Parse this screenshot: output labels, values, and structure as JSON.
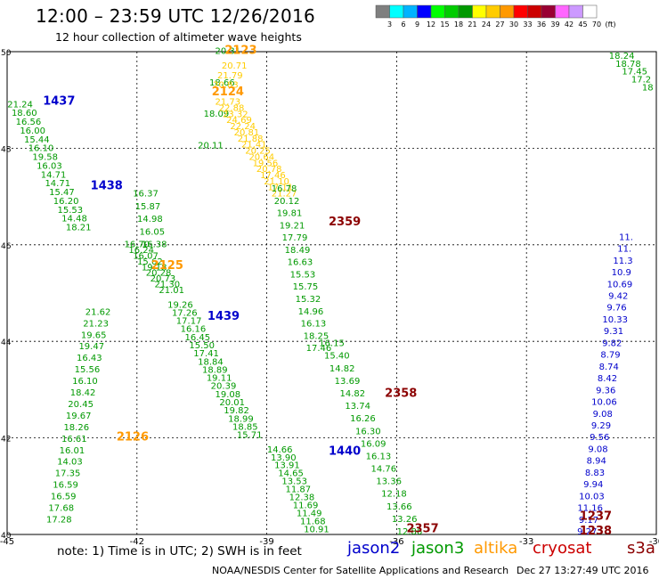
{
  "header": {
    "title": "12:00 – 23:59 UTC 12/26/2016",
    "subtitle": "12 hour collection of altimeter wave heights"
  },
  "footer": {
    "note": "note:  1) Time is in UTC; 2) SWH is in feet",
    "credits": "NOAA/NESDIS Center for Satellite Applications and Research",
    "timestamp": "Dec 27 13:27:49 UTC 2016",
    "satellites": [
      {
        "name": "jason2",
        "color": "#0000cc"
      },
      {
        "name": "jason3",
        "color": "#009900"
      },
      {
        "name": "altika",
        "color": "#ff9900"
      },
      {
        "name": "cryosat",
        "color": "#cc0000"
      },
      {
        "name": "s3a",
        "color": "#8b0000"
      }
    ]
  },
  "chart_data": {
    "type": "scatter",
    "xlim": [
      -45,
      -30
    ],
    "ylim": [
      40,
      50
    ],
    "x_ticks": [
      "-45",
      "-42",
      "-39",
      "-36",
      "-33",
      "-30"
    ],
    "y_ticks": [
      "40",
      "42",
      "44",
      "46",
      "48",
      "50"
    ],
    "grid": true,
    "colorbar": {
      "labels": [
        "3",
        "6",
        "9",
        "12",
        "15",
        "18",
        "21",
        "24",
        "27",
        "30",
        "33",
        "36",
        "39",
        "42",
        "45",
        "70",
        "(ft)"
      ],
      "colors": [
        "#7f7f7f",
        "#00ffff",
        "#00b3ff",
        "#0000ff",
        "#00ff00",
        "#00cc00",
        "#009900",
        "#ffff00",
        "#ffcc00",
        "#ff9900",
        "#ff0000",
        "#cc0000",
        "#990033",
        "#ff66ff",
        "#cc99ff",
        "#ffffff"
      ]
    },
    "pass_labels": [
      {
        "text": "2123",
        "x": -39.6,
        "y": 49.95,
        "color": "#ff9900"
      },
      {
        "text": "2124",
        "x": -39.9,
        "y": 49.1,
        "color": "#ff9900"
      },
      {
        "text": "1437",
        "x": -43.8,
        "y": 48.9,
        "color": "#0000cc"
      },
      {
        "text": "1438",
        "x": -42.7,
        "y": 47.15,
        "color": "#0000cc"
      },
      {
        "text": "2359",
        "x": -37.2,
        "y": 46.4,
        "color": "#8b0000"
      },
      {
        "text": "2125",
        "x": -41.3,
        "y": 45.5,
        "color": "#ff9900"
      },
      {
        "text": "1439",
        "x": -40.0,
        "y": 44.45,
        "color": "#0000cc"
      },
      {
        "text": "2358",
        "x": -35.9,
        "y": 42.85,
        "color": "#8b0000"
      },
      {
        "text": "2126",
        "x": -42.1,
        "y": 41.95,
        "color": "#ff9900"
      },
      {
        "text": "1440",
        "x": -37.2,
        "y": 41.65,
        "color": "#0000cc"
      },
      {
        "text": "2357",
        "x": -35.4,
        "y": 40.05,
        "color": "#8b0000"
      },
      {
        "text": "1237",
        "x": -31.4,
        "y": 40.3,
        "color": "#8b0000"
      },
      {
        "text": "1238",
        "x": -31.4,
        "y": 40.0,
        "color": "#8b0000"
      }
    ],
    "tracks": [
      {
        "name": "jason3 2123 south",
        "x0": -39.9,
        "y0": 49.95,
        "x1": -40.3,
        "y1": 48.0,
        "color": "#009900",
        "values": [
          "20.31",
          "18.66",
          "18.09",
          "20.11"
        ]
      },
      {
        "name": "altika 2123",
        "x0": -39.75,
        "y0": 49.65,
        "x1": -39.95,
        "y1": 49.25,
        "color": "#ffcc00",
        "values": [
          "20.71",
          "21.79",
          "20.83"
        ]
      },
      {
        "name": "track 2124",
        "x0": -39.9,
        "y0": 48.9,
        "x1": -38.6,
        "y1": 47.0,
        "color": "#ffcc00",
        "values": [
          "21.73",
          "22.88",
          "23.32",
          "24.69",
          "22.24",
          "20.81",
          "21.88",
          "21.41",
          "20.25",
          "20.64",
          "19.56",
          "20.78",
          "17.46",
          "21.10",
          "17.11",
          "21.27"
        ]
      },
      {
        "name": "track left 1",
        "x0": -44.7,
        "y0": 48.85,
        "x1": -43.35,
        "y1": 46.3,
        "color": "#009900",
        "values": [
          "21.24",
          "18.60",
          "16.56",
          "16.00",
          "15.44",
          "16.10",
          "19.58",
          "16.03",
          "14.71",
          "14.71",
          "15.47",
          "16.20",
          "15.53",
          "14.48",
          "18.21"
        ]
      },
      {
        "name": "track left 2",
        "x0": -41.8,
        "y0": 47.0,
        "x1": -41.6,
        "y1": 45.95,
        "color": "#009900",
        "values": [
          "16.37",
          "15.87",
          "14.98",
          "16.05",
          "16.38"
        ]
      },
      {
        "name": "track 2359",
        "x0": -38.6,
        "y0": 47.1,
        "x1": -37.8,
        "y1": 43.8,
        "color": "#009900",
        "values": [
          "16.78",
          "20.12",
          "19.81",
          "19.21",
          "17.79",
          "18.49",
          "16.63",
          "15.53",
          "15.75",
          "15.32",
          "14.96",
          "16.13",
          "18.25",
          "17.46"
        ]
      },
      {
        "name": "track 2125",
        "x0": -42.0,
        "y0": 45.95,
        "x1": -41.2,
        "y1": 45.0,
        "color": "#009900",
        "values": [
          "16.70",
          "16.24",
          "16.07",
          "15.62",
          "19.18",
          "20.28",
          "20.73",
          "21.30",
          "21.01"
        ]
      },
      {
        "name": "track 1439",
        "x0": -41.0,
        "y0": 44.7,
        "x1": -39.4,
        "y1": 42.0,
        "color": "#009900",
        "values": [
          "19.26",
          "17.26",
          "17.17",
          "16.16",
          "16.45",
          "15.50",
          "17.41",
          "18.84",
          "18.89",
          "19.11",
          "20.39",
          "19.08",
          "20.01",
          "19.82",
          "18.99",
          "18.85",
          "15.71"
        ]
      },
      {
        "name": "track 2126",
        "x0": -42.9,
        "y0": 44.55,
        "x1": -43.8,
        "y1": 40.25,
        "color": "#009900",
        "values": [
          "21.62",
          "21.23",
          "19.65",
          "19.47",
          "16.43",
          "15.56",
          "16.10",
          "18.42",
          "20.45",
          "19.67",
          "18.26",
          "16.61",
          "16.01",
          "14.03",
          "17.35",
          "16.59",
          "16.59",
          "17.68",
          "17.28"
        ]
      },
      {
        "name": "track 2358",
        "x0": -37.5,
        "y0": 43.9,
        "x1": -35.7,
        "y1": 40.0,
        "color": "#009900",
        "values": [
          "16.15",
          "15.40",
          "14.82",
          "13.69",
          "14.82",
          "13.74",
          "16.26",
          "16.30",
          "16.09",
          "16.13",
          "14.76",
          "13.36",
          "12.18",
          "13.66",
          "13.26",
          "12.86"
        ]
      },
      {
        "name": "track 1440",
        "x0": -38.7,
        "y0": 41.7,
        "x1": -37.85,
        "y1": 40.05,
        "color": "#009900",
        "values": [
          "14.66",
          "13.90",
          "13.91",
          "14.65",
          "13.53",
          "11.87",
          "12.38",
          "11.69",
          "11.49",
          "11.68",
          "10.91"
        ]
      },
      {
        "name": "track 1238 east",
        "x0": -30.7,
        "y0": 46.1,
        "x1": -31.6,
        "y1": 40.0,
        "color": "#0000cc",
        "values": [
          "11.",
          "11.",
          "11.3",
          "10.9",
          "10.69",
          "9.42",
          "9.76",
          "10.33",
          "9.31",
          "9.82",
          "8.79",
          "8.74",
          "8.42",
          "9.36",
          "10.06",
          "9.08",
          "9.29",
          "9.56",
          "9.08",
          "8.94",
          "8.83",
          "9.94",
          "10.03",
          "11.16",
          "9.17",
          "9.27"
        ]
      },
      {
        "name": "track top right",
        "x0": -30.8,
        "y0": 49.85,
        "x1": -30.2,
        "y1": 49.2,
        "color": "#009900",
        "values": [
          "18.24",
          "18.78",
          "17.45",
          "17.2",
          "18"
        ]
      }
    ]
  }
}
